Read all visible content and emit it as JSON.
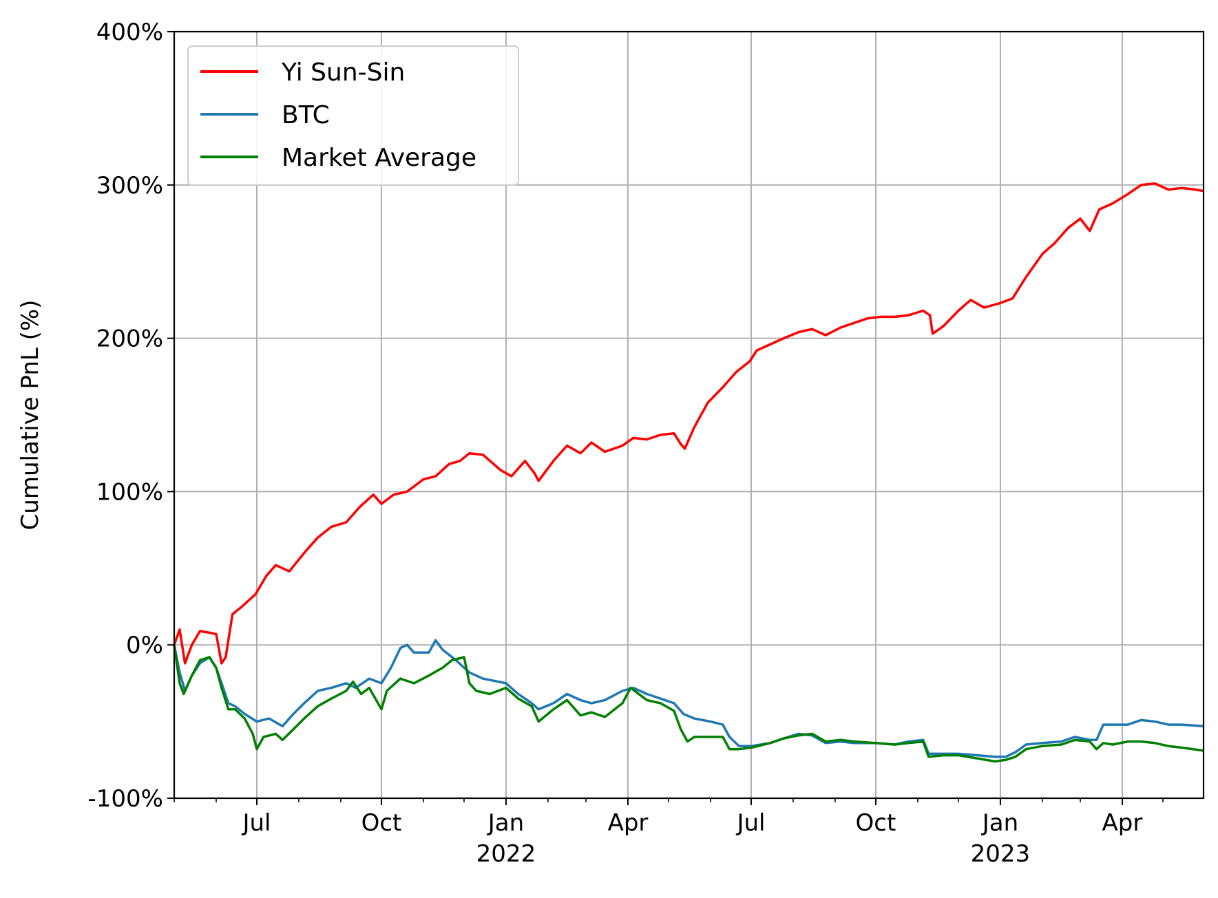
{
  "chart_data": {
    "type": "line",
    "title": "",
    "xlabel": "",
    "ylabel": "Cumulative PnL (%)",
    "x_range": [
      "2021-05-01",
      "2023-05-31"
    ],
    "ylim": [
      -100,
      400
    ],
    "y_ticks": [
      {
        "value": -100,
        "label": "-100%"
      },
      {
        "value": 0,
        "label": "0%"
      },
      {
        "value": 100,
        "label": "100%"
      },
      {
        "value": 200,
        "label": "200%"
      },
      {
        "value": 300,
        "label": "300%"
      },
      {
        "value": 400,
        "label": "400%"
      }
    ],
    "x_ticks": [
      {
        "date": "2021-07-01",
        "label": "Jul",
        "year": ""
      },
      {
        "date": "2021-10-01",
        "label": "Oct",
        "year": ""
      },
      {
        "date": "2022-01-01",
        "label": "Jan",
        "year": "2022"
      },
      {
        "date": "2022-04-01",
        "label": "Apr",
        "year": ""
      },
      {
        "date": "2022-07-01",
        "label": "Jul",
        "year": ""
      },
      {
        "date": "2022-10-01",
        "label": "Oct",
        "year": ""
      },
      {
        "date": "2023-01-01",
        "label": "Jan",
        "year": "2023"
      },
      {
        "date": "2023-04-01",
        "label": "Apr",
        "year": ""
      }
    ],
    "grid": true,
    "legend_position": "top-left",
    "series": [
      {
        "name": "Yi Sun-Sin",
        "color": "#ff0000",
        "points": [
          [
            "2021-05-01",
            0
          ],
          [
            "2021-05-05",
            10
          ],
          [
            "2021-05-09",
            -12
          ],
          [
            "2021-05-14",
            0
          ],
          [
            "2021-05-20",
            9
          ],
          [
            "2021-05-27",
            8
          ],
          [
            "2021-06-01",
            7
          ],
          [
            "2021-06-05",
            -12
          ],
          [
            "2021-06-08",
            -8
          ],
          [
            "2021-06-13",
            20
          ],
          [
            "2021-06-20",
            25
          ],
          [
            "2021-06-30",
            33
          ],
          [
            "2021-07-08",
            45
          ],
          [
            "2021-07-15",
            52
          ],
          [
            "2021-07-25",
            48
          ],
          [
            "2021-08-05",
            60
          ],
          [
            "2021-08-15",
            70
          ],
          [
            "2021-08-25",
            77
          ],
          [
            "2021-09-05",
            80
          ],
          [
            "2021-09-15",
            90
          ],
          [
            "2021-09-25",
            98
          ],
          [
            "2021-10-01",
            92
          ],
          [
            "2021-10-10",
            98
          ],
          [
            "2021-10-20",
            100
          ],
          [
            "2021-11-01",
            108
          ],
          [
            "2021-11-10",
            110
          ],
          [
            "2021-11-20",
            118
          ],
          [
            "2021-11-28",
            120
          ],
          [
            "2021-12-05",
            125
          ],
          [
            "2021-12-15",
            124
          ],
          [
            "2021-12-28",
            114
          ],
          [
            "2022-01-05",
            110
          ],
          [
            "2022-01-15",
            120
          ],
          [
            "2022-01-22",
            112
          ],
          [
            "2022-01-25",
            107
          ],
          [
            "2022-02-05",
            120
          ],
          [
            "2022-02-15",
            130
          ],
          [
            "2022-02-25",
            125
          ],
          [
            "2022-03-05",
            132
          ],
          [
            "2022-03-15",
            126
          ],
          [
            "2022-03-28",
            130
          ],
          [
            "2022-04-05",
            135
          ],
          [
            "2022-04-15",
            134
          ],
          [
            "2022-04-25",
            137
          ],
          [
            "2022-05-05",
            138
          ],
          [
            "2022-05-10",
            131
          ],
          [
            "2022-05-13",
            128
          ],
          [
            "2022-05-20",
            142
          ],
          [
            "2022-05-30",
            158
          ],
          [
            "2022-06-10",
            168
          ],
          [
            "2022-06-20",
            178
          ],
          [
            "2022-06-30",
            185
          ],
          [
            "2022-07-05",
            192
          ],
          [
            "2022-07-15",
            196
          ],
          [
            "2022-07-25",
            200
          ],
          [
            "2022-08-05",
            204
          ],
          [
            "2022-08-15",
            206
          ],
          [
            "2022-08-25",
            202
          ],
          [
            "2022-09-05",
            207
          ],
          [
            "2022-09-15",
            210
          ],
          [
            "2022-09-25",
            213
          ],
          [
            "2022-10-05",
            214
          ],
          [
            "2022-10-15",
            214
          ],
          [
            "2022-10-25",
            215
          ],
          [
            "2022-11-05",
            218
          ],
          [
            "2022-11-10",
            215
          ],
          [
            "2022-11-12",
            203
          ],
          [
            "2022-11-20",
            208
          ],
          [
            "2022-12-01",
            218
          ],
          [
            "2022-12-10",
            225
          ],
          [
            "2022-12-20",
            220
          ],
          [
            "2023-01-01",
            223
          ],
          [
            "2023-01-10",
            226
          ],
          [
            "2023-01-20",
            240
          ],
          [
            "2023-02-01",
            255
          ],
          [
            "2023-02-10",
            262
          ],
          [
            "2023-02-20",
            272
          ],
          [
            "2023-03-01",
            278
          ],
          [
            "2023-03-08",
            270
          ],
          [
            "2023-03-15",
            284
          ],
          [
            "2023-03-25",
            288
          ],
          [
            "2023-04-05",
            294
          ],
          [
            "2023-04-15",
            300
          ],
          [
            "2023-04-25",
            301
          ],
          [
            "2023-05-05",
            297
          ],
          [
            "2023-05-15",
            298
          ],
          [
            "2023-05-25",
            297
          ],
          [
            "2023-05-31",
            296
          ]
        ]
      },
      {
        "name": "BTC",
        "color": "#1f77b4",
        "points": [
          [
            "2021-05-01",
            0
          ],
          [
            "2021-05-05",
            -18
          ],
          [
            "2021-05-09",
            -30
          ],
          [
            "2021-05-14",
            -20
          ],
          [
            "2021-05-20",
            -12
          ],
          [
            "2021-05-27",
            -8
          ],
          [
            "2021-06-01",
            -15
          ],
          [
            "2021-06-05",
            -25
          ],
          [
            "2021-06-10",
            -38
          ],
          [
            "2021-06-15",
            -40
          ],
          [
            "2021-06-22",
            -45
          ],
          [
            "2021-07-01",
            -50
          ],
          [
            "2021-07-10",
            -48
          ],
          [
            "2021-07-20",
            -53
          ],
          [
            "2021-07-28",
            -45
          ],
          [
            "2021-08-05",
            -38
          ],
          [
            "2021-08-15",
            -30
          ],
          [
            "2021-08-25",
            -28
          ],
          [
            "2021-09-05",
            -25
          ],
          [
            "2021-09-12",
            -28
          ],
          [
            "2021-09-22",
            -22
          ],
          [
            "2021-10-01",
            -25
          ],
          [
            "2021-10-08",
            -15
          ],
          [
            "2021-10-15",
            -2
          ],
          [
            "2021-10-20",
            0
          ],
          [
            "2021-10-25",
            -5
          ],
          [
            "2021-11-05",
            -5
          ],
          [
            "2021-11-10",
            3
          ],
          [
            "2021-11-15",
            -3
          ],
          [
            "2021-11-25",
            -10
          ],
          [
            "2021-12-05",
            -18
          ],
          [
            "2021-12-15",
            -22
          ],
          [
            "2022-01-01",
            -25
          ],
          [
            "2022-01-10",
            -32
          ],
          [
            "2022-01-20",
            -38
          ],
          [
            "2022-01-25",
            -42
          ],
          [
            "2022-02-05",
            -38
          ],
          [
            "2022-02-15",
            -32
          ],
          [
            "2022-02-25",
            -36
          ],
          [
            "2022-03-05",
            -38
          ],
          [
            "2022-03-15",
            -36
          ],
          [
            "2022-03-28",
            -30
          ],
          [
            "2022-04-05",
            -28
          ],
          [
            "2022-04-15",
            -32
          ],
          [
            "2022-04-25",
            -35
          ],
          [
            "2022-05-05",
            -38
          ],
          [
            "2022-05-12",
            -45
          ],
          [
            "2022-05-20",
            -48
          ],
          [
            "2022-06-01",
            -50
          ],
          [
            "2022-06-10",
            -52
          ],
          [
            "2022-06-15",
            -60
          ],
          [
            "2022-06-22",
            -66
          ],
          [
            "2022-07-01",
            -66
          ],
          [
            "2022-07-15",
            -64
          ],
          [
            "2022-07-25",
            -61
          ],
          [
            "2022-08-05",
            -58
          ],
          [
            "2022-08-15",
            -59
          ],
          [
            "2022-08-25",
            -64
          ],
          [
            "2022-09-05",
            -63
          ],
          [
            "2022-09-15",
            -64
          ],
          [
            "2022-10-01",
            -64
          ],
          [
            "2022-10-15",
            -65
          ],
          [
            "2022-10-25",
            -63
          ],
          [
            "2022-11-05",
            -62
          ],
          [
            "2022-11-09",
            -71
          ],
          [
            "2022-11-20",
            -71
          ],
          [
            "2022-12-01",
            -71
          ],
          [
            "2022-12-15",
            -72
          ],
          [
            "2022-12-28",
            -73
          ],
          [
            "2023-01-05",
            -73
          ],
          [
            "2023-01-12",
            -70
          ],
          [
            "2023-01-20",
            -65
          ],
          [
            "2023-02-01",
            -64
          ],
          [
            "2023-02-15",
            -63
          ],
          [
            "2023-02-25",
            -60
          ],
          [
            "2023-03-08",
            -62
          ],
          [
            "2023-03-13",
            -62
          ],
          [
            "2023-03-18",
            -52
          ],
          [
            "2023-03-25",
            -52
          ],
          [
            "2023-04-05",
            -52
          ],
          [
            "2023-04-15",
            -49
          ],
          [
            "2023-04-25",
            -50
          ],
          [
            "2023-05-05",
            -52
          ],
          [
            "2023-05-15",
            -52
          ],
          [
            "2023-05-31",
            -53
          ]
        ]
      },
      {
        "name": "Market Average",
        "color": "#008000",
        "points": [
          [
            "2021-05-01",
            0
          ],
          [
            "2021-05-05",
            -25
          ],
          [
            "2021-05-08",
            -32
          ],
          [
            "2021-05-14",
            -20
          ],
          [
            "2021-05-20",
            -10
          ],
          [
            "2021-05-27",
            -8
          ],
          [
            "2021-06-01",
            -15
          ],
          [
            "2021-06-05",
            -28
          ],
          [
            "2021-06-10",
            -42
          ],
          [
            "2021-06-15",
            -42
          ],
          [
            "2021-06-22",
            -48
          ],
          [
            "2021-06-28",
            -58
          ],
          [
            "2021-07-01",
            -68
          ],
          [
            "2021-07-06",
            -60
          ],
          [
            "2021-07-15",
            -58
          ],
          [
            "2021-07-20",
            -62
          ],
          [
            "2021-07-28",
            -55
          ],
          [
            "2021-08-05",
            -48
          ],
          [
            "2021-08-15",
            -40
          ],
          [
            "2021-08-25",
            -35
          ],
          [
            "2021-09-05",
            -30
          ],
          [
            "2021-09-10",
            -24
          ],
          [
            "2021-09-16",
            -32
          ],
          [
            "2021-09-22",
            -28
          ],
          [
            "2021-10-01",
            -42
          ],
          [
            "2021-10-05",
            -30
          ],
          [
            "2021-10-15",
            -22
          ],
          [
            "2021-10-25",
            -25
          ],
          [
            "2021-11-05",
            -20
          ],
          [
            "2021-11-15",
            -15
          ],
          [
            "2021-11-22",
            -10
          ],
          [
            "2021-12-01",
            -8
          ],
          [
            "2021-12-05",
            -25
          ],
          [
            "2021-12-10",
            -30
          ],
          [
            "2021-12-20",
            -32
          ],
          [
            "2022-01-01",
            -28
          ],
          [
            "2022-01-10",
            -35
          ],
          [
            "2022-01-20",
            -40
          ],
          [
            "2022-01-25",
            -50
          ],
          [
            "2022-02-05",
            -42
          ],
          [
            "2022-02-15",
            -36
          ],
          [
            "2022-02-25",
            -46
          ],
          [
            "2022-03-05",
            -44
          ],
          [
            "2022-03-15",
            -47
          ],
          [
            "2022-03-28",
            -38
          ],
          [
            "2022-04-03",
            -28
          ],
          [
            "2022-04-15",
            -36
          ],
          [
            "2022-04-25",
            -38
          ],
          [
            "2022-05-05",
            -43
          ],
          [
            "2022-05-10",
            -55
          ],
          [
            "2022-05-15",
            -63
          ],
          [
            "2022-05-20",
            -60
          ],
          [
            "2022-06-01",
            -60
          ],
          [
            "2022-06-10",
            -60
          ],
          [
            "2022-06-15",
            -68
          ],
          [
            "2022-06-22",
            -68
          ],
          [
            "2022-07-01",
            -67
          ],
          [
            "2022-07-15",
            -64
          ],
          [
            "2022-07-25",
            -61
          ],
          [
            "2022-08-05",
            -59
          ],
          [
            "2022-08-15",
            -58
          ],
          [
            "2022-08-25",
            -63
          ],
          [
            "2022-09-05",
            -62
          ],
          [
            "2022-09-15",
            -63
          ],
          [
            "2022-10-01",
            -64
          ],
          [
            "2022-10-15",
            -65
          ],
          [
            "2022-10-25",
            -64
          ],
          [
            "2022-11-05",
            -63
          ],
          [
            "2022-11-09",
            -73
          ],
          [
            "2022-11-20",
            -72
          ],
          [
            "2022-12-01",
            -72
          ],
          [
            "2022-12-15",
            -74
          ],
          [
            "2022-12-28",
            -76
          ],
          [
            "2023-01-05",
            -75
          ],
          [
            "2023-01-12",
            -73
          ],
          [
            "2023-01-20",
            -68
          ],
          [
            "2023-02-01",
            -66
          ],
          [
            "2023-02-15",
            -65
          ],
          [
            "2023-02-25",
            -62
          ],
          [
            "2023-03-08",
            -63
          ],
          [
            "2023-03-13",
            -68
          ],
          [
            "2023-03-18",
            -64
          ],
          [
            "2023-03-25",
            -65
          ],
          [
            "2023-04-05",
            -63
          ],
          [
            "2023-04-15",
            -63
          ],
          [
            "2023-04-25",
            -64
          ],
          [
            "2023-05-05",
            -66
          ],
          [
            "2023-05-15",
            -67
          ],
          [
            "2023-05-31",
            -69
          ]
        ]
      }
    ]
  }
}
